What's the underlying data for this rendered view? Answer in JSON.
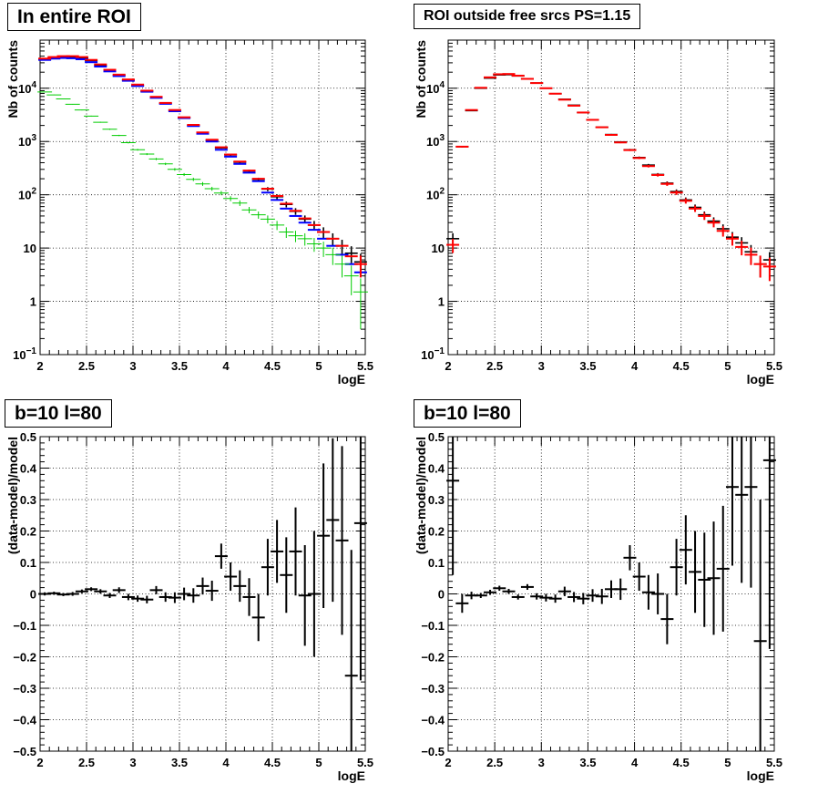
{
  "colors": {
    "data": "#000000",
    "model": "#ff0000",
    "model2": "#0000ff",
    "component": "#00cc00"
  },
  "chart_data": [
    {
      "id": "p1",
      "type": "scatter",
      "title": "In entire ROI",
      "xlabel": "logE",
      "ylabel": "Nb of counts",
      "xlim": [
        2,
        5.5
      ],
      "ylim": [
        0.1,
        80000
      ],
      "yscale": "log",
      "grid": true,
      "xticks": [
        "2",
        "2.5",
        "3",
        "3.5",
        "4",
        "4.5",
        "5",
        "5.5"
      ],
      "yticks": [
        "10^-1",
        "1",
        "10",
        "10^2",
        "10^3",
        "10^4"
      ],
      "x": [
        2.05,
        2.15,
        2.25,
        2.35,
        2.45,
        2.55,
        2.65,
        2.75,
        2.85,
        2.95,
        3.05,
        3.15,
        3.25,
        3.35,
        3.45,
        3.55,
        3.65,
        3.75,
        3.85,
        3.95,
        4.05,
        4.15,
        4.25,
        4.35,
        4.45,
        4.55,
        4.65,
        4.75,
        4.85,
        4.95,
        5.05,
        5.15,
        5.25,
        5.35,
        5.45
      ],
      "series": [
        {
          "color": "#000000",
          "values": [
            35000,
            37000,
            38500,
            38500,
            37000,
            33000,
            27000,
            21500,
            17500,
            14200,
            11300,
            8800,
            6700,
            5200,
            3800,
            2800,
            2000,
            1450,
            1050,
            760,
            560,
            410,
            280,
            195,
            128,
            92,
            66,
            49,
            35,
            27,
            20,
            15,
            11,
            8,
            5.5
          ],
          "errors": [
            187,
            192,
            196,
            196,
            192,
            182,
            164,
            147,
            132,
            119,
            106,
            94,
            82,
            72,
            62,
            53,
            45,
            38,
            32,
            28,
            24,
            20,
            17,
            14,
            11,
            9.6,
            8.1,
            7,
            5.9,
            5.2,
            4.5,
            3.9,
            3.3,
            2.8,
            2.3
          ]
        },
        {
          "color": "#0000ff",
          "values": [
            34000,
            36000,
            37000,
            36500,
            35000,
            30800,
            25500,
            20700,
            16900,
            13800,
            11000,
            8600,
            6600,
            5100,
            3700,
            2750,
            1950,
            1400,
            1000,
            700,
            520,
            380,
            260,
            180,
            110,
            80,
            55,
            40,
            30,
            22,
            15,
            11,
            7.5,
            5,
            3.5
          ],
          "errors": [
            0,
            0,
            0,
            0,
            0,
            0,
            0,
            0,
            0,
            0,
            0,
            0,
            0,
            0,
            0,
            0,
            0,
            0,
            0,
            0,
            0,
            0,
            0,
            0,
            0,
            0,
            0,
            0,
            0,
            0,
            0,
            0,
            0,
            0,
            0
          ]
        },
        {
          "color": "#ff0000",
          "values": [
            36000,
            38500,
            40000,
            40000,
            38500,
            34000,
            28000,
            22200,
            18000,
            14600,
            11700,
            9000,
            6900,
            5300,
            3900,
            2850,
            2050,
            1480,
            1080,
            780,
            570,
            420,
            285,
            200,
            130,
            95,
            68,
            50,
            36,
            27,
            20,
            15,
            11,
            7,
            5
          ],
          "errors": [
            0,
            0,
            0,
            0,
            0,
            0,
            0,
            0,
            0,
            0,
            0,
            0,
            0,
            0,
            0,
            0,
            0,
            0,
            0,
            0,
            0,
            0,
            0,
            0,
            0,
            0,
            0,
            0,
            0,
            0,
            0,
            0,
            0,
            0,
            2.2
          ]
        },
        {
          "color": "#00cc00",
          "values": [
            8500,
            7500,
            6300,
            5000,
            3900,
            3000,
            2300,
            1700,
            1300,
            950,
            700,
            580,
            470,
            380,
            300,
            240,
            195,
            160,
            130,
            108,
            85,
            70,
            52,
            42,
            35,
            27,
            20,
            17,
            15,
            12,
            10,
            7.5,
            5,
            3,
            1.5
          ],
          "errors": [
            92,
            87,
            79,
            71,
            62,
            55,
            48,
            41,
            36,
            31,
            26,
            24,
            22,
            19,
            17,
            15,
            14,
            13,
            11,
            10,
            9.2,
            8.4,
            7.2,
            6.5,
            5.9,
            5.2,
            4.5,
            4.1,
            3.9,
            3.5,
            3.2,
            2.7,
            2.2,
            1.7,
            1.2
          ]
        }
      ]
    },
    {
      "id": "p2",
      "type": "scatter",
      "title": "ROI outside free srcs PS=1.15",
      "xlabel": "logE",
      "ylabel": "Nb of counts",
      "xlim": [
        2,
        5.5
      ],
      "ylim": [
        0.1,
        80000
      ],
      "yscale": "log",
      "grid": true,
      "xticks": [
        "2",
        "2.5",
        "3",
        "3.5",
        "4",
        "4.5",
        "5",
        "5.5"
      ],
      "yticks": [
        "10^-1",
        "1",
        "10",
        "10^2",
        "10^3",
        "10^4"
      ],
      "x": [
        2.05,
        2.15,
        2.25,
        2.35,
        2.45,
        2.55,
        2.65,
        2.75,
        2.85,
        2.95,
        3.05,
        3.15,
        3.25,
        3.35,
        3.45,
        3.55,
        3.65,
        3.75,
        3.85,
        3.95,
        4.05,
        4.15,
        4.25,
        4.35,
        4.45,
        4.55,
        4.65,
        4.75,
        4.85,
        4.95,
        5.05,
        5.15,
        5.25,
        5.35,
        5.45
      ],
      "series": [
        {
          "color": "#000000",
          "values": [
            15,
            800,
            3800,
            10000,
            15500,
            17800,
            18000,
            17000,
            14900,
            12500,
            10000,
            7900,
            6200,
            4800,
            3500,
            2550,
            1850,
            1350,
            980,
            700,
            500,
            360,
            240,
            165,
            115,
            80,
            58,
            42,
            32,
            23,
            16,
            12.5,
            8.5,
            5,
            6
          ],
          "errors": [
            4,
            28,
            62,
            100,
            124,
            133,
            134,
            130,
            122,
            112,
            100,
            89,
            79,
            69,
            59,
            50,
            43,
            37,
            31,
            26,
            22,
            19,
            15,
            13,
            11,
            9,
            7.6,
            6.5,
            5.7,
            4.8,
            4,
            3.5,
            2.9,
            2.2,
            2.4
          ]
        },
        {
          "color": "#ff0000",
          "values": [
            11.5,
            800,
            3900,
            10200,
            16000,
            18300,
            18500,
            17200,
            15000,
            12500,
            10000,
            7900,
            6100,
            4700,
            3500,
            2550,
            1850,
            1330,
            960,
            690,
            490,
            345,
            235,
            160,
            110,
            77,
            55,
            40,
            30,
            21,
            15,
            10.5,
            7.5,
            5,
            4.5
          ],
          "errors": [
            3.4,
            28,
            62,
            101,
            126,
            135,
            136,
            131,
            122,
            112,
            100,
            89,
            78,
            69,
            59,
            50,
            43,
            36,
            31,
            26,
            22,
            19,
            15,
            13,
            10.5,
            8.8,
            7.4,
            6.3,
            5.5,
            4.6,
            3.9,
            3.2,
            2.7,
            2.2,
            2.1
          ]
        }
      ]
    },
    {
      "id": "p3",
      "type": "scatter",
      "title": "b=10 l=80",
      "xlabel": "logE",
      "ylabel": "(data-model)/model",
      "xlim": [
        2,
        5.5
      ],
      "ylim": [
        -0.5,
        0.5
      ],
      "yscale": "linear",
      "grid": true,
      "xticks": [
        "2",
        "2.5",
        "3",
        "3.5",
        "4",
        "4.5",
        "5",
        "5.5"
      ],
      "yticks": [
        "-0.5",
        "-0.4",
        "-0.3",
        "-0.2",
        "-0.1",
        "0",
        "0.1",
        "0.2",
        "0.3",
        "0.4",
        "0.5"
      ],
      "x": [
        2.05,
        2.15,
        2.25,
        2.35,
        2.45,
        2.55,
        2.65,
        2.75,
        2.85,
        2.95,
        3.05,
        3.15,
        3.25,
        3.35,
        3.45,
        3.55,
        3.65,
        3.75,
        3.85,
        3.95,
        4.05,
        4.15,
        4.25,
        4.35,
        4.45,
        4.55,
        4.65,
        4.75,
        4.85,
        4.95,
        5.05,
        5.15,
        5.25,
        5.35,
        5.45
      ],
      "series": [
        {
          "color": "#000000",
          "values": [
            0.0,
            0.002,
            -0.002,
            0.0,
            0.008,
            0.015,
            0.008,
            -0.005,
            0.012,
            -0.01,
            -0.015,
            -0.018,
            0.012,
            -0.01,
            -0.012,
            0.0,
            -0.005,
            0.025,
            0.01,
            0.12,
            0.055,
            0.025,
            -0.01,
            -0.075,
            0.085,
            0.135,
            0.06,
            0.135,
            -0.005,
            0.0,
            0.185,
            0.235,
            0.17,
            -0.26,
            0.225
          ],
          "errors": [
            0.005,
            0.005,
            0.005,
            0.006,
            0.006,
            0.006,
            0.007,
            0.008,
            0.009,
            0.01,
            0.01,
            0.012,
            0.013,
            0.015,
            0.017,
            0.02,
            0.023,
            0.027,
            0.032,
            0.04,
            0.045,
            0.05,
            0.06,
            0.075,
            0.09,
            0.1,
            0.12,
            0.14,
            0.16,
            0.2,
            0.23,
            0.26,
            0.3,
            0.4,
            0.5
          ]
        }
      ]
    },
    {
      "id": "p4",
      "type": "scatter",
      "title": "b=10 l=80",
      "xlabel": "logE",
      "ylabel": "(data-model)/model",
      "xlim": [
        2,
        5.5
      ],
      "ylim": [
        -0.5,
        0.5
      ],
      "yscale": "linear",
      "grid": true,
      "xticks": [
        "2",
        "2.5",
        "3",
        "3.5",
        "4",
        "4.5",
        "5",
        "5.5"
      ],
      "yticks": [
        "-0.5",
        "-0.4",
        "-0.3",
        "-0.2",
        "-0.1",
        "0",
        "0.1",
        "0.2",
        "0.3",
        "0.4",
        "0.5"
      ],
      "x": [
        2.05,
        2.15,
        2.25,
        2.35,
        2.45,
        2.55,
        2.65,
        2.75,
        2.85,
        2.95,
        3.05,
        3.15,
        3.25,
        3.35,
        3.45,
        3.55,
        3.65,
        3.75,
        3.85,
        3.95,
        4.05,
        4.15,
        4.25,
        4.35,
        4.45,
        4.55,
        4.65,
        4.75,
        4.85,
        4.95,
        5.05,
        5.15,
        5.25,
        5.35,
        5.45
      ],
      "series": [
        {
          "color": "#000000",
          "values": [
            0.36,
            -0.03,
            -0.005,
            -0.005,
            0.005,
            0.018,
            0.008,
            -0.01,
            0.022,
            -0.008,
            -0.012,
            -0.015,
            0.008,
            -0.01,
            -0.015,
            -0.005,
            -0.008,
            0.015,
            0.015,
            0.115,
            0.055,
            0.005,
            0.0,
            -0.08,
            0.085,
            0.14,
            0.07,
            0.045,
            0.05,
            0.08,
            0.34,
            0.315,
            0.34,
            -0.15,
            0.425
          ],
          "errors": [
            0.3,
            0.03,
            0.012,
            0.008,
            0.008,
            0.008,
            0.008,
            0.008,
            0.009,
            0.01,
            0.012,
            0.013,
            0.015,
            0.016,
            0.018,
            0.02,
            0.024,
            0.028,
            0.034,
            0.04,
            0.045,
            0.055,
            0.065,
            0.08,
            0.09,
            0.11,
            0.13,
            0.15,
            0.18,
            0.2,
            0.25,
            0.28,
            0.32,
            0.45,
            0.6
          ]
        }
      ]
    }
  ]
}
